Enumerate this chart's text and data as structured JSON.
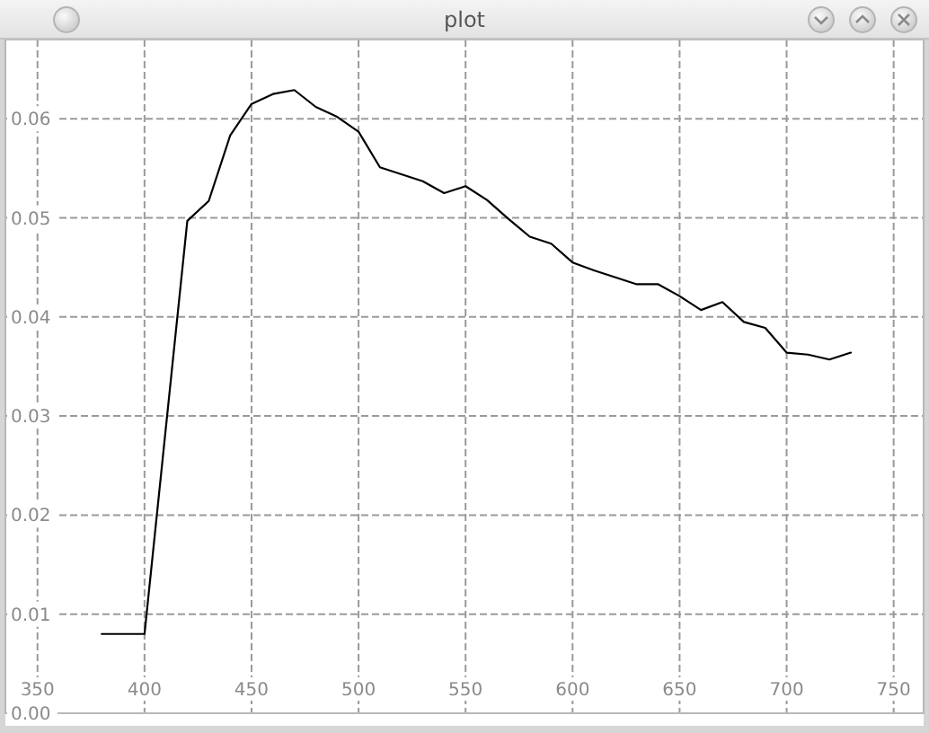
{
  "chart_data": {
    "type": "line",
    "title": "plot",
    "x": [
      380,
      400,
      420,
      430,
      440,
      450,
      460,
      470,
      480,
      490,
      500,
      510,
      520,
      530,
      540,
      550,
      560,
      570,
      580,
      590,
      600,
      610,
      620,
      630,
      640,
      650,
      660,
      670,
      680,
      690,
      700,
      710,
      720,
      730
    ],
    "values": [
      0.008,
      0.008,
      0.0497,
      0.0517,
      0.0583,
      0.0615,
      0.0625,
      0.0629,
      0.0612,
      0.0602,
      0.0587,
      0.0551,
      0.0544,
      0.0537,
      0.0525,
      0.0532,
      0.0518,
      0.0499,
      0.0481,
      0.0474,
      0.0455,
      0.0447,
      0.044,
      0.0433,
      0.0433,
      0.0421,
      0.0407,
      0.0415,
      0.0395,
      0.0389,
      0.0364,
      0.0362,
      0.0357,
      0.0364
    ],
    "color": "#000000",
    "line_style": "solid",
    "xlim": [
      335,
      764
    ],
    "ylim": [
      0,
      0.068
    ],
    "xticks": [
      350,
      400,
      450,
      500,
      550,
      600,
      650,
      700,
      750
    ],
    "yticks": [
      {
        "value": 0,
        "label": "0.00"
      },
      0.01,
      0.02,
      0.03,
      0.04,
      0.05,
      0.06
    ],
    "grid": true
  }
}
